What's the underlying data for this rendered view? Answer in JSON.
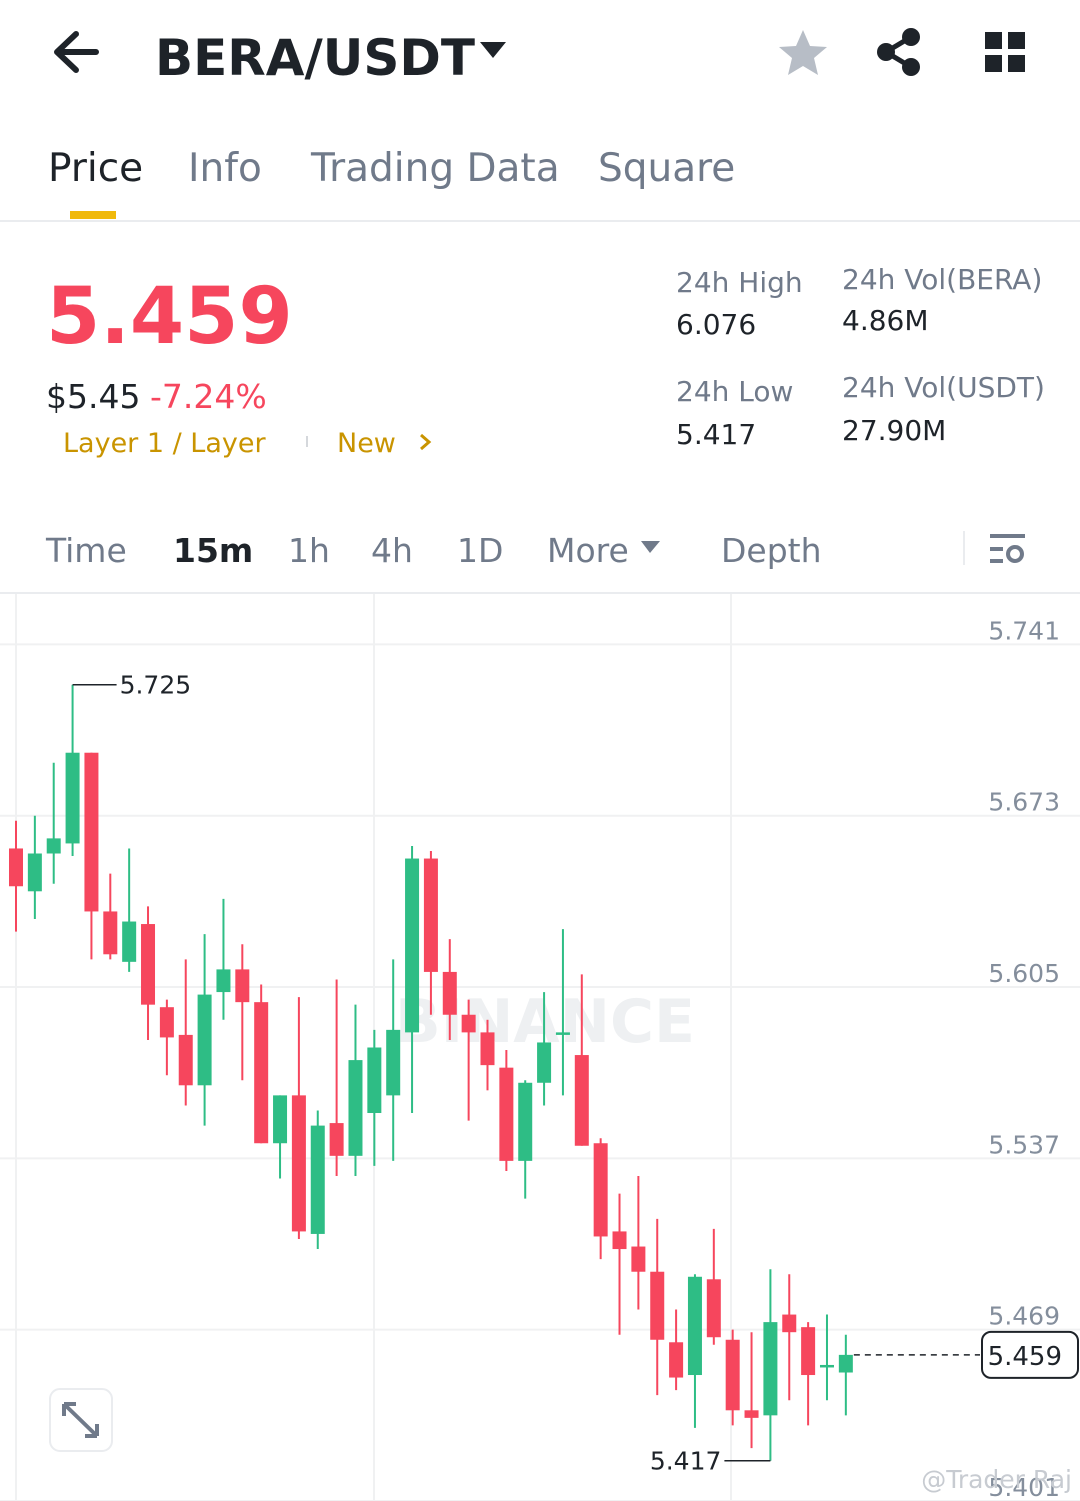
{
  "header": {
    "pair": "BERA/USDT"
  },
  "tabs": [
    "Price",
    "Info",
    "Trading Data",
    "Square"
  ],
  "price": {
    "last": "5.459",
    "usd": "$5.45",
    "change": "-7.24%",
    "tag": "Layer 1 / Layer",
    "tag2": "New"
  },
  "stats": [
    {
      "label": "24h High",
      "value": "6.076"
    },
    {
      "label": "24h Vol(BERA)",
      "value": "4.86M"
    },
    {
      "label": "24h Low",
      "value": "5.417"
    },
    {
      "label": "24h Vol(USDT)",
      "value": "27.90M"
    }
  ],
  "intervals": [
    "Time",
    "15m",
    "1h",
    "4h",
    "1D",
    "More",
    "Depth"
  ],
  "watermarks": [
    "BINANCE",
    "@Trader Raj"
  ],
  "chart_data": {
    "type": "candlestick",
    "up_color": "#2ebd85",
    "down_color": "#f6465d",
    "open": [
      5.66,
      5.643,
      5.658,
      5.662,
      5.698,
      5.635,
      5.615,
      5.63,
      5.597,
      5.586,
      5.566,
      5.603,
      5.612,
      5.599,
      5.543,
      5.562,
      5.507,
      5.551,
      5.538,
      5.555,
      5.562,
      5.587,
      5.656,
      5.611,
      5.594,
      5.587,
      5.573,
      5.536,
      5.567,
      5.586,
      5.578,
      5.543,
      5.508,
      5.502,
      5.492,
      5.464,
      5.451,
      5.489,
      5.465,
      5.437,
      5.435,
      5.475,
      5.47,
      5.454,
      5.452
    ],
    "high": [
      5.671,
      5.673,
      5.694,
      5.725,
      5.698,
      5.65,
      5.66,
      5.637,
      5.6,
      5.616,
      5.626,
      5.64,
      5.622,
      5.606,
      5.562,
      5.601,
      5.556,
      5.608,
      5.598,
      5.588,
      5.616,
      5.661,
      5.659,
      5.624,
      5.6,
      5.592,
      5.58,
      5.568,
      5.603,
      5.628,
      5.61,
      5.545,
      5.523,
      5.53,
      5.513,
      5.477,
      5.491,
      5.509,
      5.469,
      5.468,
      5.493,
      5.491,
      5.472,
      5.475,
      5.467
    ],
    "low": [
      5.627,
      5.632,
      5.646,
      5.657,
      5.616,
      5.616,
      5.611,
      5.584,
      5.57,
      5.558,
      5.55,
      5.592,
      5.568,
      5.543,
      5.529,
      5.505,
      5.501,
      5.53,
      5.53,
      5.534,
      5.536,
      5.555,
      5.594,
      5.584,
      5.552,
      5.564,
      5.532,
      5.521,
      5.558,
      5.562,
      5.542,
      5.497,
      5.467,
      5.477,
      5.443,
      5.445,
      5.43,
      5.463,
      5.431,
      5.422,
      5.417,
      5.441,
      5.431,
      5.441,
      5.435
    ],
    "close": [
      5.645,
      5.658,
      5.664,
      5.698,
      5.635,
      5.618,
      5.631,
      5.598,
      5.585,
      5.566,
      5.602,
      5.612,
      5.599,
      5.543,
      5.562,
      5.508,
      5.55,
      5.538,
      5.576,
      5.581,
      5.588,
      5.656,
      5.611,
      5.594,
      5.587,
      5.574,
      5.536,
      5.567,
      5.583,
      5.587,
      5.542,
      5.506,
      5.501,
      5.492,
      5.465,
      5.45,
      5.49,
      5.466,
      5.437,
      5.434,
      5.472,
      5.468,
      5.451,
      5.455,
      5.459
    ],
    "annotations": [
      5.725,
      5.417
    ],
    "last_price": 5.459,
    "ylim": [
      5.401,
      5.761
    ],
    "yticks": [
      5.741,
      5.673,
      5.605,
      5.537,
      5.469,
      5.401
    ],
    "grid": true
  }
}
